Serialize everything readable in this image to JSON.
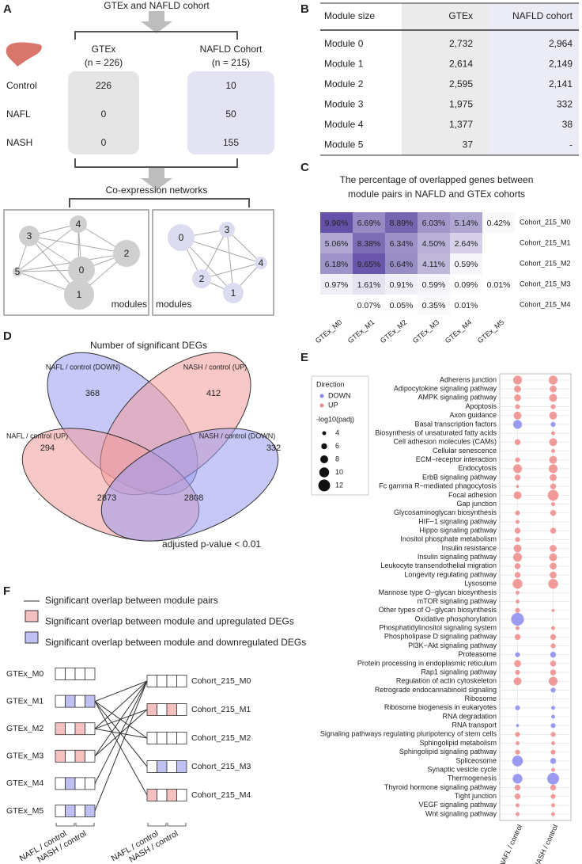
{
  "panel_a": {
    "letter": "A",
    "header": "GTEx and NAFLD cohort",
    "columns": [
      {
        "name": "GTEx",
        "n": "(n = 226)"
      },
      {
        "name": "NAFLD Cohort",
        "n": "(n = 215)"
      }
    ],
    "rows": [
      {
        "label": "Control",
        "values": [
          226,
          10
        ]
      },
      {
        "label": "NAFL",
        "values": [
          0,
          50
        ]
      },
      {
        "label": "NASH",
        "values": [
          0,
          155
        ]
      }
    ],
    "network_title": "Co-expression networks",
    "networks": [
      {
        "nodes": [
          "3",
          "4",
          "0",
          "2",
          "5",
          "1"
        ],
        "label": "modules"
      },
      {
        "nodes": [
          "0",
          "3",
          "4",
          "2",
          "1"
        ],
        "label": "modules"
      }
    ]
  },
  "panel_b": {
    "letter": "B",
    "table": {
      "header": [
        "Module size",
        "GTEx",
        "NAFLD cohort"
      ],
      "rows": [
        [
          "Module 0",
          "2,732",
          "2,964"
        ],
        [
          "Module 1",
          "2,614",
          "2,149"
        ],
        [
          "Module 2",
          "2,595",
          "2,141"
        ],
        [
          "Module 3",
          "1,975",
          "332"
        ],
        [
          "Module 4",
          "1,377",
          "38"
        ],
        [
          "Module 5",
          "37",
          "-"
        ]
      ]
    }
  },
  "panel_d": {
    "letter": "D",
    "title": "Number of significant DEGs",
    "sets": [
      {
        "name": "NAFL / control (DOWN)",
        "color": "#9b9bf3"
      },
      {
        "name": "NASH / control (UP)",
        "color": "#f39b9b"
      },
      {
        "name": "NAFL / control (UP)",
        "color": "#f39b9b"
      },
      {
        "name": "NASH / control (DOWN)",
        "color": "#9b9bf3"
      }
    ],
    "counts": [
      368,
      412,
      294,
      332,
      2873,
      2808
    ],
    "note": "adjusted p-value < 0.01"
  },
  "panel_f": {
    "letter": "F",
    "legend": [
      "Significant overlap between module pairs",
      "Significant overlap between module and upregulated DEGs",
      "Significant overlap between module and downregulated DEGs"
    ],
    "up_color": "#f5c0c0",
    "down_color": "#c0c0f2",
    "left_modules": [
      "GTEx_M0",
      "GTEx_M1",
      "GTEx_M2",
      "GTEx_M3",
      "GTEx_M4",
      "GTEx_M5"
    ],
    "right_modules": [
      "Cohort_215_M0",
      "Cohort_215_M1",
      "Cohort_215_M2",
      "Cohort_215_M3",
      "Cohort_215_M4"
    ],
    "column_labels": [
      "NAFL / control",
      "NASH / control"
    ]
  },
  "chart_data": [
    {
      "type": "heatmap",
      "letter": "C",
      "title": [
        "The percentage of overlapped genes between",
        "module pairs in NAFLD and GTEx cohorts"
      ],
      "categories": [
        "GTEx_M0",
        "GTEx_M1",
        "GTEx_M2",
        "GTEx_M3",
        "GTEx_M4",
        "GTEx_M5"
      ],
      "color_scale": [
        "#ffffff",
        "#6552a8"
      ],
      "series": [
        {
          "name": "Cohort_215_M0",
          "values": [
            9.96,
            6.69,
            8.89,
            6.03,
            5.14,
            0.42
          ],
          "value_labels": [
            "9.96%",
            "6.69%",
            "8.89%",
            "6.03%",
            "5.14%",
            "0.42%"
          ]
        },
        {
          "name": "Cohort_215_M1",
          "values": [
            5.06,
            8.38,
            6.34,
            4.5,
            2.64,
            null
          ],
          "value_labels": [
            "5.06%",
            "8.38%",
            "6.34%",
            "4.50%",
            "2.64%",
            null
          ]
        },
        {
          "name": "Cohort_215_M2",
          "values": [
            6.18,
            9.65,
            6.64,
            4.11,
            0.59,
            null
          ],
          "value_labels": [
            "6.18%",
            "9.65%",
            "6.64%",
            "4.11%",
            "0.59%",
            null
          ]
        },
        {
          "name": "Cohort_215_M3",
          "values": [
            0.97,
            1.61,
            0.91,
            0.59,
            0.09,
            0.01
          ],
          "value_labels": [
            "0.97%",
            "1.61%",
            "0.91%",
            "0.59%",
            "0.09%",
            "0.01%"
          ]
        },
        {
          "name": "Cohort_215_M4",
          "values": [
            null,
            0.07,
            0.05,
            0.35,
            0.01,
            null
          ],
          "value_labels": [
            null,
            "0.07%",
            "0.05%",
            "0.35%",
            "0.01%",
            null
          ]
        }
      ]
    },
    {
      "type": "dot",
      "letter": "E",
      "categories": [
        "Adherens junction",
        "Adipocytokine signaling pathway",
        "AMPK signaling pathway",
        "Apoptosis",
        "Axon guidance",
        "Basal transcription factors",
        "Biosynthesis of unsaturated fatty acids",
        "Cell adhesion molecules (CAMs)",
        "Cellular senescence",
        "ECM−receptor interaction",
        "Endocytosis",
        "ErbB signaling pathway",
        "Fc gamma R−mediated phagocytosis",
        "Focal adhesion",
        "Gap junction",
        "Glycosaminoglycan biosynthesis",
        "HIF−1 signaling pathway",
        "Hippo signaling pathway",
        "Inositol phosphate metabolism",
        "Insulin resistance",
        "Insulin signaling pathway",
        "Leukocyte transendothelial migration",
        "Longevity regulating pathway",
        "Lysosome",
        "Mannose type O−glycan biosynthesis",
        "mTOR signaling pathway",
        "Other types of O−glycan biosynthesis",
        "Oxidative phosphorylation",
        "Phosphatidylinositol signaling system",
        "Phospholipase D signaling pathway",
        "PI3K−Akt signaling pathway",
        "Proteasome",
        "Protein processing in endoplasmic reticulum",
        "Rap1 signaling pathway",
        "Regulation of actin cytoskeleton",
        "Retrograde endocannabinoid signaling",
        "Ribosome",
        "Ribosome biogenesis in eukaryotes",
        "RNA degradation",
        "RNA transport",
        "Signaling pathways regulating pluripotency of stem cells",
        "Sphingolipid metabolism",
        "Sphingolipid signaling pathway",
        "Spliceosome",
        "Synaptic vesicle cycle",
        "Thermogenesis",
        "Thyroid hormone signaling pathway",
        "Tight junction",
        "VEGF signaling pathway",
        "Wnt signaling pathway"
      ],
      "legend": {
        "title": "Direction",
        "entries": [
          {
            "name": "DOWN",
            "color": "#8a8af0"
          },
          {
            "name": "UP",
            "color": "#f08a8a"
          }
        ]
      },
      "size_legend": {
        "title": "-log10(padj)",
        "values": [
          4,
          6,
          8,
          10,
          12
        ]
      },
      "series": [
        {
          "name": "NAFL / control",
          "values": [
            9,
            7,
            7,
            5,
            8,
            9,
            null,
            6,
            null,
            5,
            9,
            6,
            3,
            8,
            null,
            5,
            4,
            6,
            5,
            8,
            9,
            6,
            6,
            10,
            4,
            4,
            5,
            13,
            4,
            6,
            null,
            5,
            7,
            5,
            8,
            null,
            null,
            5,
            null,
            3,
            5,
            4,
            5,
            11,
            null,
            10,
            6,
            6,
            4,
            4
          ],
          "direction": [
            "UP",
            "UP",
            "UP",
            "UP",
            "UP",
            "DOWN",
            null,
            "UP",
            null,
            "UP",
            "UP",
            "UP",
            "UP",
            "UP",
            null,
            "UP",
            "UP",
            "UP",
            "UP",
            "UP",
            "UP",
            "UP",
            "UP",
            "UP",
            "UP",
            "UP",
            "UP",
            "DOWN",
            "UP",
            "UP",
            null,
            "DOWN",
            "UP",
            "UP",
            "UP",
            null,
            null,
            "DOWN",
            null,
            "DOWN",
            "UP",
            "UP",
            "UP",
            "DOWN",
            null,
            "DOWN",
            "UP",
            "UP",
            "UP",
            "UP"
          ]
        },
        {
          "name": "NASH / control",
          "values": [
            9,
            7,
            8,
            5,
            8,
            5,
            4,
            8,
            4,
            8,
            9,
            7,
            6,
            11,
            4,
            6,
            null,
            6,
            null,
            7,
            8,
            7,
            7,
            10,
            null,
            null,
            3,
            null,
            4,
            6,
            5,
            6,
            6,
            6,
            9,
            5,
            null,
            4,
            4,
            5,
            5,
            4,
            5,
            6,
            4,
            12,
            6,
            5,
            4,
            4
          ],
          "direction": [
            "UP",
            "UP",
            "UP",
            "UP",
            "UP",
            "DOWN",
            "UP",
            "UP",
            "UP",
            "UP",
            "UP",
            "UP",
            "UP",
            "UP",
            "UP",
            "UP",
            null,
            "UP",
            null,
            "UP",
            "UP",
            "UP",
            "UP",
            "UP",
            null,
            null,
            "UP",
            null,
            "UP",
            "UP",
            "UP",
            "DOWN",
            "UP",
            "UP",
            "UP",
            "DOWN",
            null,
            "DOWN",
            "DOWN",
            "DOWN",
            "UP",
            "UP",
            "UP",
            "DOWN",
            "UP",
            "DOWN",
            "UP",
            "UP",
            "UP",
            "UP"
          ]
        }
      ]
    }
  ]
}
